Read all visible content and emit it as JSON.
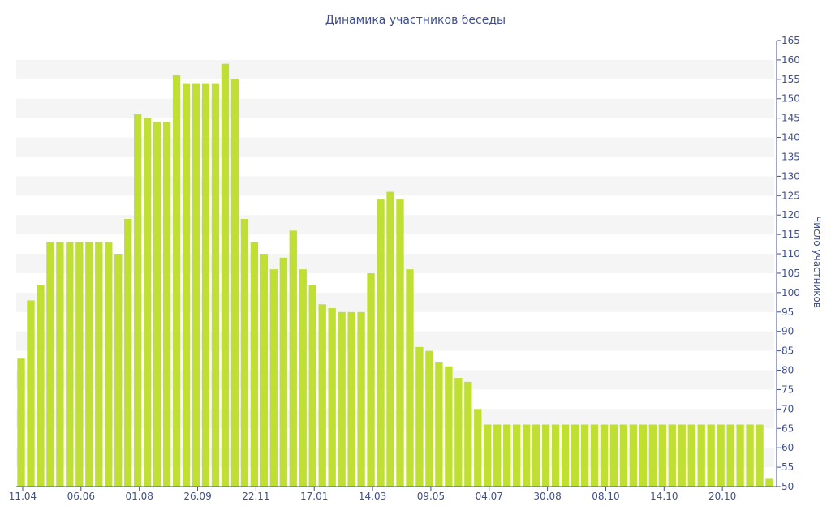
{
  "colors": {
    "bar": "#bfe033",
    "band": "#f5f5f5",
    "axis": "#3f4f8a",
    "text": "#3f4f8a"
  },
  "chart_data": {
    "type": "bar",
    "title": "Динамика участников беседы",
    "xlabel": "",
    "ylabel": "Число участников",
    "y_axis_side": "right",
    "ylim": [
      50,
      165
    ],
    "y_ticks": [
      50,
      55,
      60,
      65,
      70,
      75,
      80,
      85,
      90,
      95,
      100,
      105,
      110,
      115,
      120,
      125,
      130,
      135,
      140,
      145,
      150,
      155,
      160,
      165
    ],
    "grid": "alternating horizontal bands",
    "x_tick_labels": [
      {
        "label": "11.04",
        "index": 0
      },
      {
        "label": "06.06",
        "index": 6
      },
      {
        "label": "01.08",
        "index": 12
      },
      {
        "label": "26.09",
        "index": 18
      },
      {
        "label": "22.11",
        "index": 24
      },
      {
        "label": "17.01",
        "index": 30
      },
      {
        "label": "14.03",
        "index": 36
      },
      {
        "label": "09.05",
        "index": 42
      },
      {
        "label": "04.07",
        "index": 48
      },
      {
        "label": "30.08",
        "index": 54
      },
      {
        "label": "08.10",
        "index": 60
      },
      {
        "label": "14.10",
        "index": 66
      },
      {
        "label": "20.10",
        "index": 72
      }
    ],
    "values": [
      83,
      98,
      102,
      113,
      113,
      113,
      113,
      113,
      113,
      113,
      110,
      119,
      146,
      145,
      144,
      144,
      156,
      154,
      154,
      154,
      154,
      159,
      155,
      119,
      113,
      110,
      106,
      109,
      116,
      106,
      102,
      97,
      96,
      95,
      95,
      95,
      105,
      124,
      126,
      124,
      106,
      86,
      85,
      82,
      81,
      78,
      77,
      70,
      66,
      66,
      66,
      66,
      66,
      66,
      66,
      66,
      66,
      66,
      66,
      66,
      66,
      66,
      66,
      66,
      66,
      66,
      66,
      66,
      66,
      66,
      66,
      66,
      66,
      66,
      66,
      66,
      66,
      52
    ]
  }
}
